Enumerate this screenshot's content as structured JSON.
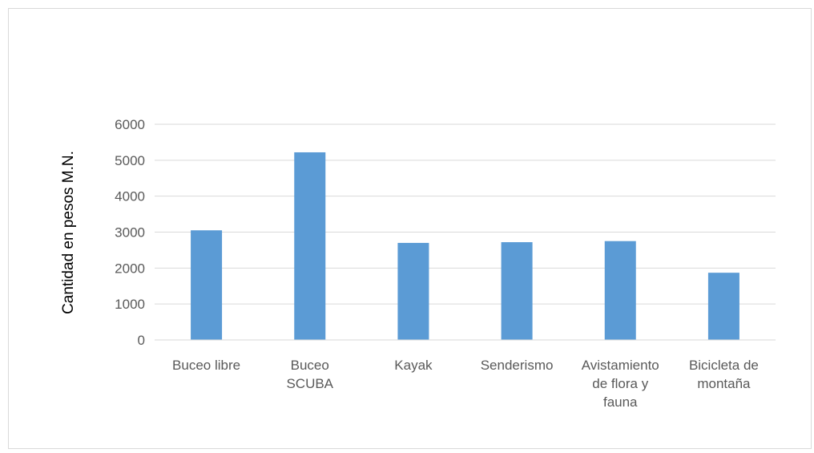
{
  "chart_data": {
    "type": "bar",
    "title": "",
    "xlabel": "",
    "ylabel": "Cantidad en pesos M.N.",
    "categories": [
      [
        "Buceo libre"
      ],
      [
        "Buceo",
        "SCUBA"
      ],
      [
        "Kayak"
      ],
      [
        "Senderismo"
      ],
      [
        "Avistamiento",
        "de flora y",
        "fauna"
      ],
      [
        "Bicicleta de",
        "montaña"
      ]
    ],
    "values": [
      3050,
      5220,
      2700,
      2720,
      2750,
      1870
    ],
    "ylim": [
      0,
      6000
    ],
    "yticks": [
      "0",
      "1000",
      "2000",
      "3000",
      "4000",
      "5000",
      "6000"
    ],
    "grid": true,
    "legend": "none",
    "bar_color": "#5b9bd5",
    "grid_color": "#d9d9d9"
  }
}
